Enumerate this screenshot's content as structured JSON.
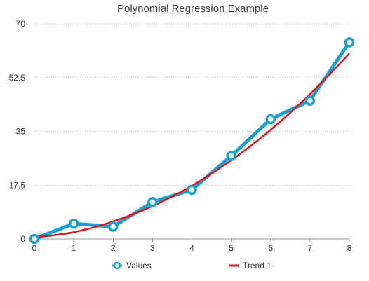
{
  "chart_data": {
    "type": "line",
    "title": "Polynomial Regression Example",
    "xlabel": "",
    "ylabel": "",
    "x": [
      0,
      1,
      2,
      3,
      4,
      5,
      6,
      7,
      8
    ],
    "xlim": [
      0,
      8
    ],
    "ylim": [
      0,
      70
    ],
    "x_ticks": [
      "0",
      "1",
      "2",
      "3",
      "4",
      "5",
      "6",
      "7",
      "8"
    ],
    "y_ticks": [
      {
        "value": 0,
        "label": "0"
      },
      {
        "value": 17.5,
        "label": "17.5"
      },
      {
        "value": 35,
        "label": "35"
      },
      {
        "value": 52.5,
        "label": "52.5"
      },
      {
        "value": 70,
        "label": "70"
      }
    ],
    "grid": "horizontal dotted",
    "legend_position": "bottom",
    "series": [
      {
        "name": "Values",
        "kind": "line-markers",
        "color": "#1aa0cf",
        "values": [
          0,
          5,
          4,
          12,
          16,
          27,
          39,
          45,
          64
        ]
      },
      {
        "name": "Trend 1",
        "kind": "trend-line",
        "color": "#e8141c",
        "values": [
          0.5,
          2.2,
          5.7,
          10.7,
          17.3,
          25.6,
          35.5,
          47.1,
          60.3
        ]
      }
    ]
  }
}
